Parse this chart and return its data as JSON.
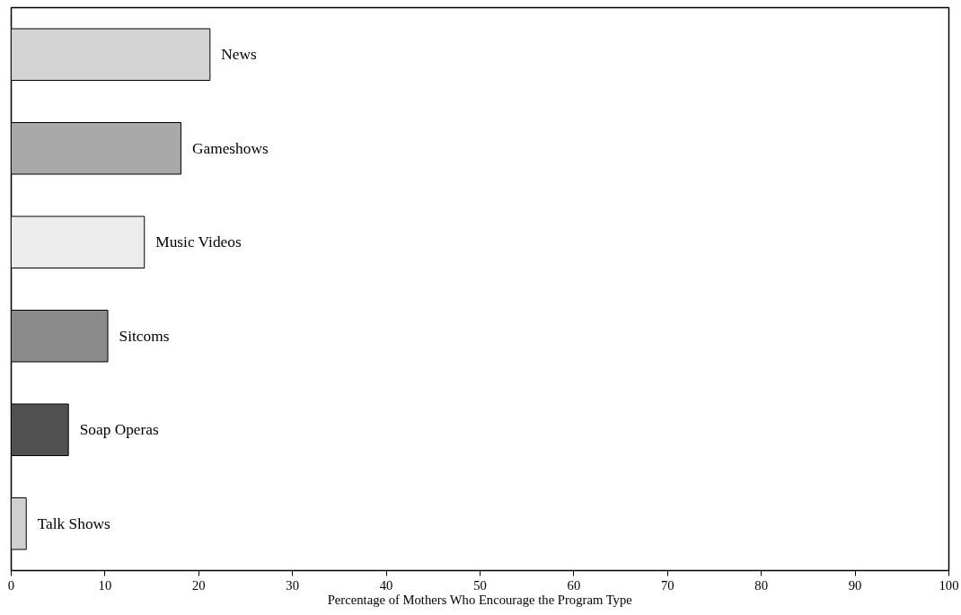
{
  "chart_data": {
    "type": "bar",
    "orientation": "horizontal",
    "xlabel": "Percentage of Mothers Who Encourage the Program Type",
    "categories": [
      "News",
      "Gameshows",
      "Music Videos",
      "Sitcoms",
      "Soap Operas",
      "Talk Shows"
    ],
    "values": [
      21.2,
      18.1,
      14.2,
      10.3,
      6.1,
      1.6
    ],
    "colors": [
      "#d4d4d4",
      "#a9a9a9",
      "#ececec",
      "#8a8a8a",
      "#505050",
      "#d0d0d0"
    ],
    "xlim": [
      0,
      100
    ],
    "xticks": [
      0,
      10,
      20,
      30,
      40,
      50,
      60,
      70,
      80,
      90,
      100
    ],
    "tick_labels": "x",
    "grid": false
  }
}
